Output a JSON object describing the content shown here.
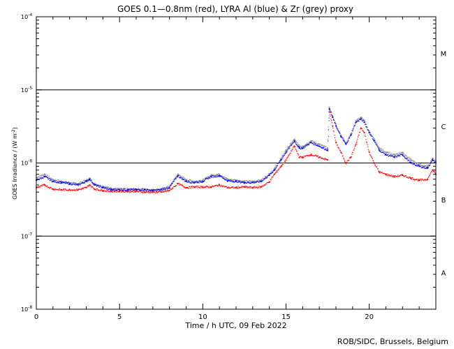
{
  "chart_data": {
    "type": "scatter",
    "title": "GOES 0.1—0.8nm (red), LYRA Al (blue) & Zr (grey) proxy",
    "xlabel": "Time / h UTC, 09 Feb 2022",
    "ylabel_prefix": "GOES Irradiance / (W m",
    "ylabel_exp": "-2",
    "ylabel_suffix": ")",
    "xlim": [
      0,
      24
    ],
    "ylim_log10": [
      -8,
      -4
    ],
    "x_ticks": [
      0,
      5,
      10,
      15,
      20
    ],
    "y_tick_exponents": [
      "-8",
      "-7",
      "-6",
      "-5",
      "-4"
    ],
    "reference_lines_log10": [
      -7,
      -6,
      -5
    ],
    "flare_classes": [
      {
        "label": "A",
        "log10": -7.5
      },
      {
        "label": "B",
        "log10": -6.5
      },
      {
        "label": "C",
        "log10": -5.5
      },
      {
        "label": "M",
        "log10": -4.5
      }
    ],
    "colors": {
      "goes": "#ff0000",
      "lyra_al": "#0000ff",
      "lyra_zr": "#8c8c8c",
      "axes": "#000000"
    },
    "series": [
      {
        "name": "GOES 0.1-0.8nm",
        "color": "#ff0000",
        "x": [
          0,
          0.5,
          1,
          1.5,
          2,
          2.5,
          3,
          3.2,
          3.5,
          4,
          4.5,
          5,
          5.5,
          6,
          6.5,
          7,
          7.5,
          8,
          8.5,
          9,
          9.5,
          10,
          10.5,
          11,
          11.5,
          12,
          12.5,
          13,
          13.5,
          14,
          14.3,
          14.7,
          15,
          15.5,
          15.8,
          16,
          16.5,
          17,
          17.5,
          17.6,
          17.8,
          18,
          18.3,
          18.6,
          18.9,
          19.2,
          19.5,
          19.7,
          20,
          20.3,
          20.6,
          21,
          21.5,
          22,
          22.5,
          23,
          23.5,
          23.8,
          24
        ],
        "y": [
          4.6e-07,
          5e-07,
          4.4e-07,
          4.3e-07,
          4.3e-07,
          4.3e-07,
          4.6e-07,
          5e-07,
          4.4e-07,
          4.2e-07,
          4.1e-07,
          4.1e-07,
          4.1e-07,
          4.1e-07,
          4e-07,
          4e-07,
          4e-07,
          4.2e-07,
          5.2e-07,
          4.6e-07,
          4.7e-07,
          4.7e-07,
          4.7e-07,
          5e-07,
          4.6e-07,
          4.6e-07,
          4.7e-07,
          4.6e-07,
          4.7e-07,
          5.5e-07,
          7e-07,
          9e-07,
          1.1e-06,
          1.7e-06,
          1.2e-06,
          1.2e-06,
          1.3e-06,
          1.2e-06,
          1.1e-06,
          5e-06,
          3.2e-06,
          1.9e-06,
          1.4e-06,
          1e-06,
          1.2e-06,
          1.8e-06,
          3e-06,
          2.6e-06,
          1.4e-06,
          1e-06,
          7.5e-07,
          7e-07,
          6.5e-07,
          6.8e-07,
          6.2e-07,
          5.8e-07,
          6e-07,
          8e-07,
          7e-07
        ]
      },
      {
        "name": "LYRA Al proxy",
        "color": "#0000ff",
        "x": [
          0,
          0.5,
          1,
          1.5,
          2,
          2.5,
          3,
          3.2,
          3.5,
          4,
          4.5,
          5,
          5.5,
          6,
          6.5,
          7,
          7.5,
          8,
          8.5,
          9,
          9.5,
          10,
          10.5,
          11,
          11.5,
          12,
          12.5,
          13,
          13.5,
          14,
          14.3,
          14.7,
          15,
          15.5,
          15.8,
          16,
          16.5,
          17,
          17.5,
          17.6,
          17.8,
          18,
          18.3,
          18.6,
          18.9,
          19.2,
          19.5,
          19.7,
          20,
          20.3,
          20.6,
          21,
          21.5,
          22,
          22.5,
          23,
          23.5,
          23.8,
          24
        ],
        "y": [
          5.8e-07,
          6.5e-07,
          5.6e-07,
          5.4e-07,
          5.2e-07,
          5e-07,
          5.6e-07,
          6e-07,
          5e-07,
          4.6e-07,
          4.3e-07,
          4.3e-07,
          4.3e-07,
          4.3e-07,
          4.3e-07,
          4.2e-07,
          4.3e-07,
          4.6e-07,
          6.7e-07,
          5.6e-07,
          5.4e-07,
          5.6e-07,
          6.5e-07,
          6.7e-07,
          5.7e-07,
          5.6e-07,
          5.4e-07,
          5.4e-07,
          5.6e-07,
          6.8e-07,
          8e-07,
          1.1e-06,
          1.4e-06,
          2e-06,
          1.6e-06,
          1.6e-06,
          1.9e-06,
          1.7e-06,
          1.5e-06,
          5.5e-06,
          4.2e-06,
          3.2e-06,
          2.3e-06,
          1.8e-06,
          2.4e-06,
          3.6e-06,
          4e-06,
          3.6e-06,
          2.6e-06,
          2e-06,
          1.5e-06,
          1.3e-06,
          1.2e-06,
          1.3e-06,
          1e-06,
          9e-07,
          8.5e-07,
          1.1e-06,
          1e-06
        ]
      },
      {
        "name": "LYRA Zr proxy",
        "color": "#8c8c8c",
        "x": [
          0,
          0.5,
          1,
          1.5,
          2,
          2.5,
          3,
          3.2,
          3.5,
          4,
          4.5,
          5,
          5.5,
          6,
          6.5,
          7,
          7.5,
          8,
          8.5,
          9,
          9.5,
          10,
          10.5,
          11,
          11.5,
          12,
          12.5,
          13,
          13.5,
          14,
          14.3,
          14.7,
          15,
          15.5,
          15.8,
          16,
          16.5,
          17,
          17.5,
          17.6,
          17.8,
          18,
          18.3,
          18.6,
          18.9,
          19.2,
          19.5,
          19.7,
          20,
          20.3,
          20.6,
          21,
          21.5,
          22,
          22.5,
          23,
          23.5,
          23.8,
          24
        ],
        "y": [
          6.3e-07,
          7e-07,
          5.9e-07,
          5.6e-07,
          5.4e-07,
          5.2e-07,
          5.8e-07,
          6.2e-07,
          5.2e-07,
          4.8e-07,
          4.5e-07,
          4.4e-07,
          4.4e-07,
          4.4e-07,
          4.4e-07,
          4.3e-07,
          4.4e-07,
          4.8e-07,
          7e-07,
          5.9e-07,
          5.6e-07,
          5.8e-07,
          6.8e-07,
          7e-07,
          6e-07,
          5.8e-07,
          5.6e-07,
          5.6e-07,
          5.8e-07,
          7.1e-07,
          8.4e-07,
          1.15e-06,
          1.5e-06,
          2.1e-06,
          1.7e-06,
          1.7e-06,
          2e-06,
          1.8e-06,
          1.6e-06,
          5.8e-06,
          4.4e-06,
          3.3e-06,
          2.4e-06,
          1.9e-06,
          2.5e-06,
          3.8e-06,
          4.2e-06,
          3.8e-06,
          2.7e-06,
          2.1e-06,
          1.6e-06,
          1.4e-06,
          1.3e-06,
          1.4e-06,
          1.1e-06,
          9.5e-07,
          9e-07,
          1.15e-06,
          1.05e-06
        ]
      }
    ]
  },
  "credit": "ROB/SIDC, Brussels, Belgium"
}
